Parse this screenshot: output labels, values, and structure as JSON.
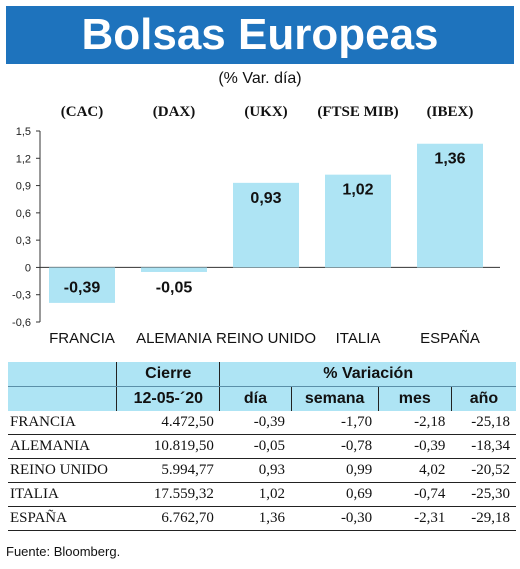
{
  "header": {
    "title": "Bolsas Europeas",
    "subtitle": "(% Var. día)"
  },
  "chart_data": {
    "type": "bar",
    "categories": [
      "FRANCIA",
      "ALEMANIA",
      "REINO UNIDO",
      "ITALIA",
      "ESPAÑA"
    ],
    "index_labels": [
      "(CAC)",
      "(DAX)",
      "(UKX)",
      "(FTSE MIB)",
      "(IBEX)"
    ],
    "values": [
      -0.39,
      -0.05,
      0.93,
      1.02,
      1.36
    ],
    "value_labels": [
      "-0,39",
      "-0,05",
      "0,93",
      "1,02",
      "1,36"
    ],
    "ylim": [
      -0.6,
      1.5
    ],
    "yticks": [
      -0.6,
      -0.3,
      0,
      0.3,
      0.6,
      0.9,
      1.2,
      1.5
    ],
    "ytick_labels": [
      "-0,6",
      "-0,3",
      "0",
      "0,3",
      "0,6",
      "0,9",
      "1,2",
      "1,5"
    ],
    "bar_color": "#aee4f4",
    "grid": false
  },
  "table": {
    "header_row1": {
      "cierre": "Cierre",
      "variacion": "% Variación"
    },
    "header_row2": [
      "12-05-´20",
      "día",
      "semana",
      "mes",
      "año"
    ],
    "rows": [
      {
        "name": "FRANCIA",
        "cierre": "4.472,50",
        "dia": "-0,39",
        "semana": "-1,70",
        "mes": "-2,18",
        "anio": "-25,18"
      },
      {
        "name": "ALEMANIA",
        "cierre": "10.819,50",
        "dia": "-0,05",
        "semana": "-0,78",
        "mes": "-0,39",
        "anio": "-18,34"
      },
      {
        "name": "REINO UNIDO",
        "cierre": "5.994,77",
        "dia": "0,93",
        "semana": "0,99",
        "mes": "4,02",
        "anio": "-20,52"
      },
      {
        "name": "ITALIA",
        "cierre": "17.559,32",
        "dia": "1,02",
        "semana": "0,69",
        "mes": "-0,74",
        "anio": "-25,30"
      },
      {
        "name": "ESPAÑA",
        "cierre": "6.762,70",
        "dia": "1,36",
        "semana": "-0,30",
        "mes": "-2,31",
        "anio": "-29,18"
      }
    ]
  },
  "footer": {
    "source": "Fuente: Bloomberg."
  }
}
